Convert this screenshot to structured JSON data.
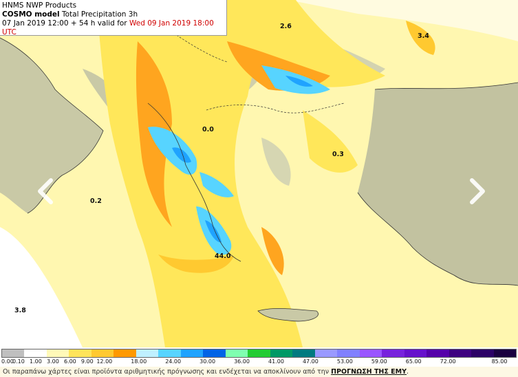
{
  "header": {
    "line1": "HNMS NWP Products",
    "model": "COSMO model",
    "product": "Total Precipitation 3h",
    "run": "07 Jan 2019 12:00 + 54 h valid for",
    "valid": "Wed 09 Jan 2019 18:00 UTC"
  },
  "map_values": [
    "2.6",
    "3.4",
    "0.0",
    "0.3",
    "0.2",
    "44.0",
    "3.8"
  ],
  "legend": {
    "ticks": [
      "0.00",
      "0.10",
      "1.00",
      "3.00",
      "6.00",
      "9.00",
      "12.00",
      "18.00",
      "24.00",
      "30.00",
      "36.00",
      "41.00",
      "47.00",
      "53.00",
      "59.00",
      "65.00",
      "72.00",
      "85.00"
    ],
    "colors": [
      "#bfbfbf",
      "#ffffff",
      "#fff9b8",
      "#ffe45a",
      "#ffc930",
      "#ff9900",
      "#bff0ff",
      "#57d4ff",
      "#1fa3ff",
      "#0063e6",
      "#7fffb0",
      "#22cc33",
      "#009966",
      "#007a80",
      "#9999ff",
      "#8080ff",
      "#9955ff",
      "#7722dd",
      "#6611cc",
      "#5500aa",
      "#3d0080",
      "#2b0066",
      "#1a0040"
    ]
  },
  "footer": {
    "text": "Οι παραπάνω χάρτες είναι προϊόντα αριθμητικής πρόγνωσης και ενδέχεται να αποκλίνουν από την",
    "link": "ΠΡΟΓΝΩΣΗ ΤΗΣ ΕΜΥ",
    "end": "."
  }
}
